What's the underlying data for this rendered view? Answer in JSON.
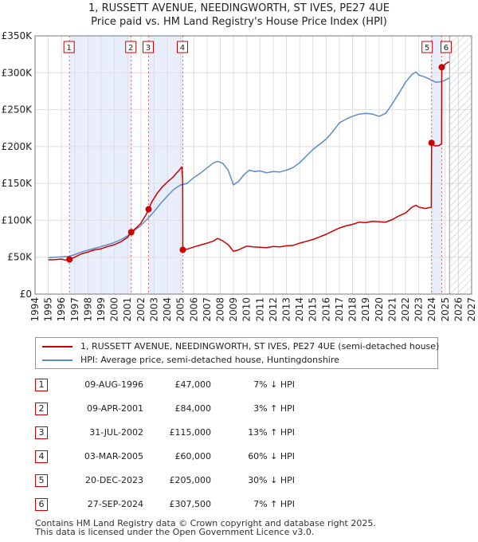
{
  "chart_data": {
    "type": "line",
    "title": "1, RUSSETT AVENUE, NEEDINGWORTH, ST IVES, PE27 4UE",
    "subtitle": "Price paid vs. HM Land Registry's House Price Index (HPI)",
    "xlabel": "",
    "ylabel": "",
    "xlim": [
      1994,
      2027
    ],
    "ylim": [
      0,
      350000
    ],
    "x_ticks": [
      "1994",
      "1995",
      "1996",
      "1997",
      "1998",
      "1999",
      "2000",
      "2001",
      "2002",
      "2003",
      "2004",
      "2005",
      "2006",
      "2007",
      "2008",
      "2009",
      "2010",
      "2011",
      "2012",
      "2013",
      "2014",
      "2015",
      "2016",
      "2017",
      "2018",
      "2019",
      "2020",
      "2021",
      "2022",
      "2023",
      "2024",
      "2025",
      "2026",
      "2027"
    ],
    "y_ticks": [
      {
        "value": 0,
        "label": "£0"
      },
      {
        "value": 50000,
        "label": "£50K"
      },
      {
        "value": 100000,
        "label": "£100K"
      },
      {
        "value": 150000,
        "label": "£150K"
      },
      {
        "value": 200000,
        "label": "£200K"
      },
      {
        "value": 250000,
        "label": "£250K"
      },
      {
        "value": 300000,
        "label": "£300K"
      },
      {
        "value": 350000,
        "label": "£350K"
      }
    ],
    "shaded_ranges": [
      [
        1996.6,
        2001.27
      ],
      [
        2002.58,
        2005.17
      ],
      [
        2023.97,
        2024.74
      ]
    ],
    "future_start": 2025.33,
    "series": [
      {
        "name": "1, RUSSETT AVENUE, NEEDINGWORTH, ST IVES, PE27 4UE (semi-detached house)",
        "color": "#cc0000",
        "points": [
          [
            1995.0,
            46500
          ],
          [
            1995.5,
            46800
          ],
          [
            1996.0,
            47500
          ],
          [
            1996.3,
            46000
          ],
          [
            1996.6,
            47000
          ],
          [
            1997.0,
            50000
          ],
          [
            1997.5,
            54500
          ],
          [
            1998.0,
            57000
          ],
          [
            1998.5,
            60000
          ],
          [
            1999.0,
            61500
          ],
          [
            1999.5,
            64500
          ],
          [
            2000.0,
            67000
          ],
          [
            2000.5,
            71000
          ],
          [
            2001.0,
            77000
          ],
          [
            2001.27,
            84000
          ],
          [
            2001.6,
            89000
          ],
          [
            2002.0,
            96000
          ],
          [
            2002.4,
            108000
          ],
          [
            2002.58,
            115000
          ],
          [
            2002.8,
            124000
          ],
          [
            2003.2,
            136000
          ],
          [
            2003.6,
            145000
          ],
          [
            2004.0,
            152000
          ],
          [
            2004.4,
            158000
          ],
          [
            2004.8,
            166000
          ],
          [
            2005.1,
            172500
          ],
          [
            2005.16,
            155000
          ],
          [
            2005.17,
            60000
          ],
          [
            2005.6,
            61500
          ],
          [
            2006.0,
            64000
          ],
          [
            2006.5,
            66500
          ],
          [
            2007.0,
            69000
          ],
          [
            2007.5,
            72000
          ],
          [
            2007.8,
            75500
          ],
          [
            2008.2,
            72000
          ],
          [
            2008.6,
            67000
          ],
          [
            2009.0,
            58000
          ],
          [
            2009.3,
            59500
          ],
          [
            2009.7,
            62500
          ],
          [
            2010.0,
            65000
          ],
          [
            2010.5,
            64000
          ],
          [
            2011.0,
            63500
          ],
          [
            2011.5,
            63000
          ],
          [
            2012.0,
            64500
          ],
          [
            2012.5,
            64000
          ],
          [
            2013.0,
            65500
          ],
          [
            2013.5,
            66000
          ],
          [
            2014.0,
            69000
          ],
          [
            2014.5,
            71500
          ],
          [
            2015.0,
            74000
          ],
          [
            2015.5,
            77500
          ],
          [
            2016.0,
            81000
          ],
          [
            2016.5,
            85500
          ],
          [
            2017.0,
            89500
          ],
          [
            2017.5,
            92500
          ],
          [
            2018.0,
            94500
          ],
          [
            2018.5,
            97500
          ],
          [
            2019.0,
            97000
          ],
          [
            2019.5,
            98500
          ],
          [
            2020.0,
            98000
          ],
          [
            2020.5,
            97500
          ],
          [
            2021.0,
            101000
          ],
          [
            2021.5,
            106000
          ],
          [
            2022.0,
            110000
          ],
          [
            2022.5,
            118000
          ],
          [
            2022.8,
            120500
          ],
          [
            2023.0,
            118000
          ],
          [
            2023.5,
            116000
          ],
          [
            2023.95,
            118000
          ],
          [
            2023.97,
            205000
          ],
          [
            2024.2,
            201000
          ],
          [
            2024.5,
            201000
          ],
          [
            2024.73,
            204000
          ],
          [
            2024.74,
            307500
          ],
          [
            2024.9,
            310000
          ],
          [
            2025.1,
            313000
          ],
          [
            2025.3,
            315000
          ]
        ]
      },
      {
        "name": "HPI: Average price, semi-detached house, Huntingdonshire",
        "color": "#5b8cc9",
        "points": [
          [
            1995.0,
            49500
          ],
          [
            1995.5,
            50000
          ],
          [
            1996.0,
            50500
          ],
          [
            1996.5,
            51000
          ],
          [
            1997.0,
            53500
          ],
          [
            1997.5,
            57000
          ],
          [
            1998.0,
            59500
          ],
          [
            1998.5,
            62000
          ],
          [
            1999.0,
            64500
          ],
          [
            1999.5,
            67000
          ],
          [
            2000.0,
            70000
          ],
          [
            2000.5,
            74000
          ],
          [
            2001.0,
            79000
          ],
          [
            2001.5,
            86000
          ],
          [
            2002.0,
            93000
          ],
          [
            2002.5,
            102000
          ],
          [
            2003.0,
            112000
          ],
          [
            2003.5,
            123000
          ],
          [
            2004.0,
            133000
          ],
          [
            2004.5,
            142000
          ],
          [
            2005.0,
            148000
          ],
          [
            2005.5,
            150000
          ],
          [
            2006.0,
            158000
          ],
          [
            2006.5,
            164000
          ],
          [
            2007.0,
            171000
          ],
          [
            2007.5,
            178000
          ],
          [
            2007.8,
            180000
          ],
          [
            2008.2,
            177000
          ],
          [
            2008.6,
            168000
          ],
          [
            2009.0,
            148000
          ],
          [
            2009.4,
            153000
          ],
          [
            2009.8,
            162000
          ],
          [
            2010.2,
            168000
          ],
          [
            2010.6,
            166000
          ],
          [
            2011.0,
            167000
          ],
          [
            2011.5,
            164500
          ],
          [
            2012.0,
            166000
          ],
          [
            2012.5,
            165500
          ],
          [
            2013.0,
            168000
          ],
          [
            2013.5,
            171500
          ],
          [
            2014.0,
            178000
          ],
          [
            2014.5,
            187000
          ],
          [
            2015.0,
            196000
          ],
          [
            2015.5,
            203000
          ],
          [
            2016.0,
            210000
          ],
          [
            2016.5,
            220000
          ],
          [
            2017.0,
            232000
          ],
          [
            2017.5,
            237000
          ],
          [
            2018.0,
            241000
          ],
          [
            2018.5,
            244000
          ],
          [
            2019.0,
            245000
          ],
          [
            2019.5,
            244000
          ],
          [
            2020.0,
            241000
          ],
          [
            2020.5,
            245000
          ],
          [
            2021.0,
            258000
          ],
          [
            2021.5,
            272000
          ],
          [
            2022.0,
            287000
          ],
          [
            2022.5,
            298000
          ],
          [
            2022.8,
            301000
          ],
          [
            2023.0,
            297000
          ],
          [
            2023.5,
            294000
          ],
          [
            2023.97,
            290000
          ],
          [
            2024.3,
            287000
          ],
          [
            2024.74,
            288000
          ],
          [
            2025.0,
            290000
          ],
          [
            2025.3,
            293000
          ]
        ]
      }
    ],
    "sale_markers": [
      {
        "num": "1",
        "year": 1996.6,
        "price": 47000
      },
      {
        "num": "2",
        "year": 2001.27,
        "price": 84000
      },
      {
        "num": "3",
        "year": 2002.58,
        "price": 115000
      },
      {
        "num": "4",
        "year": 2005.17,
        "price": 60000
      },
      {
        "num": "5",
        "year": 2023.97,
        "price": 205000
      },
      {
        "num": "6",
        "year": 2024.74,
        "price": 307500
      }
    ]
  },
  "legend": {
    "property_label": "1, RUSSETT AVENUE, NEEDINGWORTH, ST IVES, PE27 4UE (semi-detached house)",
    "hpi_label": "HPI: Average price, semi-detached house, Huntingdonshire"
  },
  "sales": [
    {
      "num": "1",
      "date": "09-AUG-1996",
      "price": "£47,000",
      "hpi": "7% ↓ HPI"
    },
    {
      "num": "2",
      "date": "09-APR-2001",
      "price": "£84,000",
      "hpi": "3% ↑ HPI"
    },
    {
      "num": "3",
      "date": "31-JUL-2002",
      "price": "£115,000",
      "hpi": "13% ↑ HPI"
    },
    {
      "num": "4",
      "date": "03-MAR-2005",
      "price": "£60,000",
      "hpi": "60% ↓ HPI"
    },
    {
      "num": "5",
      "date": "20-DEC-2023",
      "price": "£205,000",
      "hpi": "30% ↓ HPI"
    },
    {
      "num": "6",
      "date": "27-SEP-2024",
      "price": "£307,500",
      "hpi": "7% ↑ HPI"
    }
  ],
  "footer": {
    "line1": "Contains HM Land Registry data © Crown copyright and database right 2025.",
    "line2": "This data is licensed under the Open Government Licence v3.0."
  },
  "colors": {
    "property": "#cc0000",
    "hpi": "#5b8cc9",
    "shade": "#e8eefb",
    "grid": "#dddddd"
  }
}
